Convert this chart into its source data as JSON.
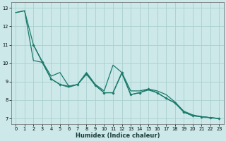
{
  "xlabel": "Humidex (Indice chaleur)",
  "bg_color": "#cce8e8",
  "grid_color": "#aad0d0",
  "line_color": "#1a7a6a",
  "xlim": [
    -0.5,
    23.5
  ],
  "ylim": [
    6.7,
    13.3
  ],
  "yticks": [
    7,
    8,
    9,
    10,
    11,
    12,
    13
  ],
  "xticks": [
    0,
    1,
    2,
    3,
    4,
    5,
    6,
    7,
    8,
    9,
    10,
    11,
    12,
    13,
    14,
    15,
    16,
    17,
    18,
    19,
    20,
    21,
    22,
    23
  ],
  "line1_x": [
    0,
    1,
    2,
    3,
    4,
    5,
    6,
    7,
    8,
    9,
    10,
    11,
    12,
    13,
    14,
    15,
    16,
    17,
    18,
    19,
    20,
    21,
    22,
    23
  ],
  "line1_y": [
    12.75,
    12.85,
    10.15,
    10.05,
    9.15,
    8.85,
    8.7,
    8.85,
    9.45,
    8.8,
    8.4,
    8.4,
    9.45,
    8.3,
    8.4,
    8.55,
    8.4,
    8.1,
    7.85,
    7.35,
    7.15,
    7.1,
    7.05,
    7.0
  ],
  "line2_x": [
    0,
    1,
    2,
    3,
    4,
    5,
    6,
    7,
    8,
    9,
    10,
    11,
    12,
    13,
    14,
    15,
    16,
    17,
    18,
    19,
    20,
    21,
    22,
    23
  ],
  "line2_y": [
    12.75,
    12.85,
    11.0,
    10.1,
    9.3,
    9.5,
    8.75,
    8.85,
    9.5,
    8.85,
    8.5,
    9.9,
    9.5,
    8.5,
    8.5,
    8.6,
    8.5,
    8.3,
    7.9,
    7.4,
    7.2,
    7.1,
    7.05,
    7.0
  ],
  "line3_x": [
    2,
    3,
    4,
    5,
    6,
    7,
    8,
    9,
    10,
    11,
    12,
    13,
    14,
    15,
    16,
    17,
    18,
    19,
    20,
    21,
    22,
    23
  ],
  "line3_y": [
    11.0,
    10.05,
    9.15,
    8.85,
    8.75,
    8.85,
    9.4,
    8.8,
    8.4,
    8.4,
    9.5,
    8.3,
    8.4,
    8.6,
    8.4,
    8.1,
    7.85,
    7.35,
    7.15,
    7.1,
    7.05,
    7.0
  ]
}
